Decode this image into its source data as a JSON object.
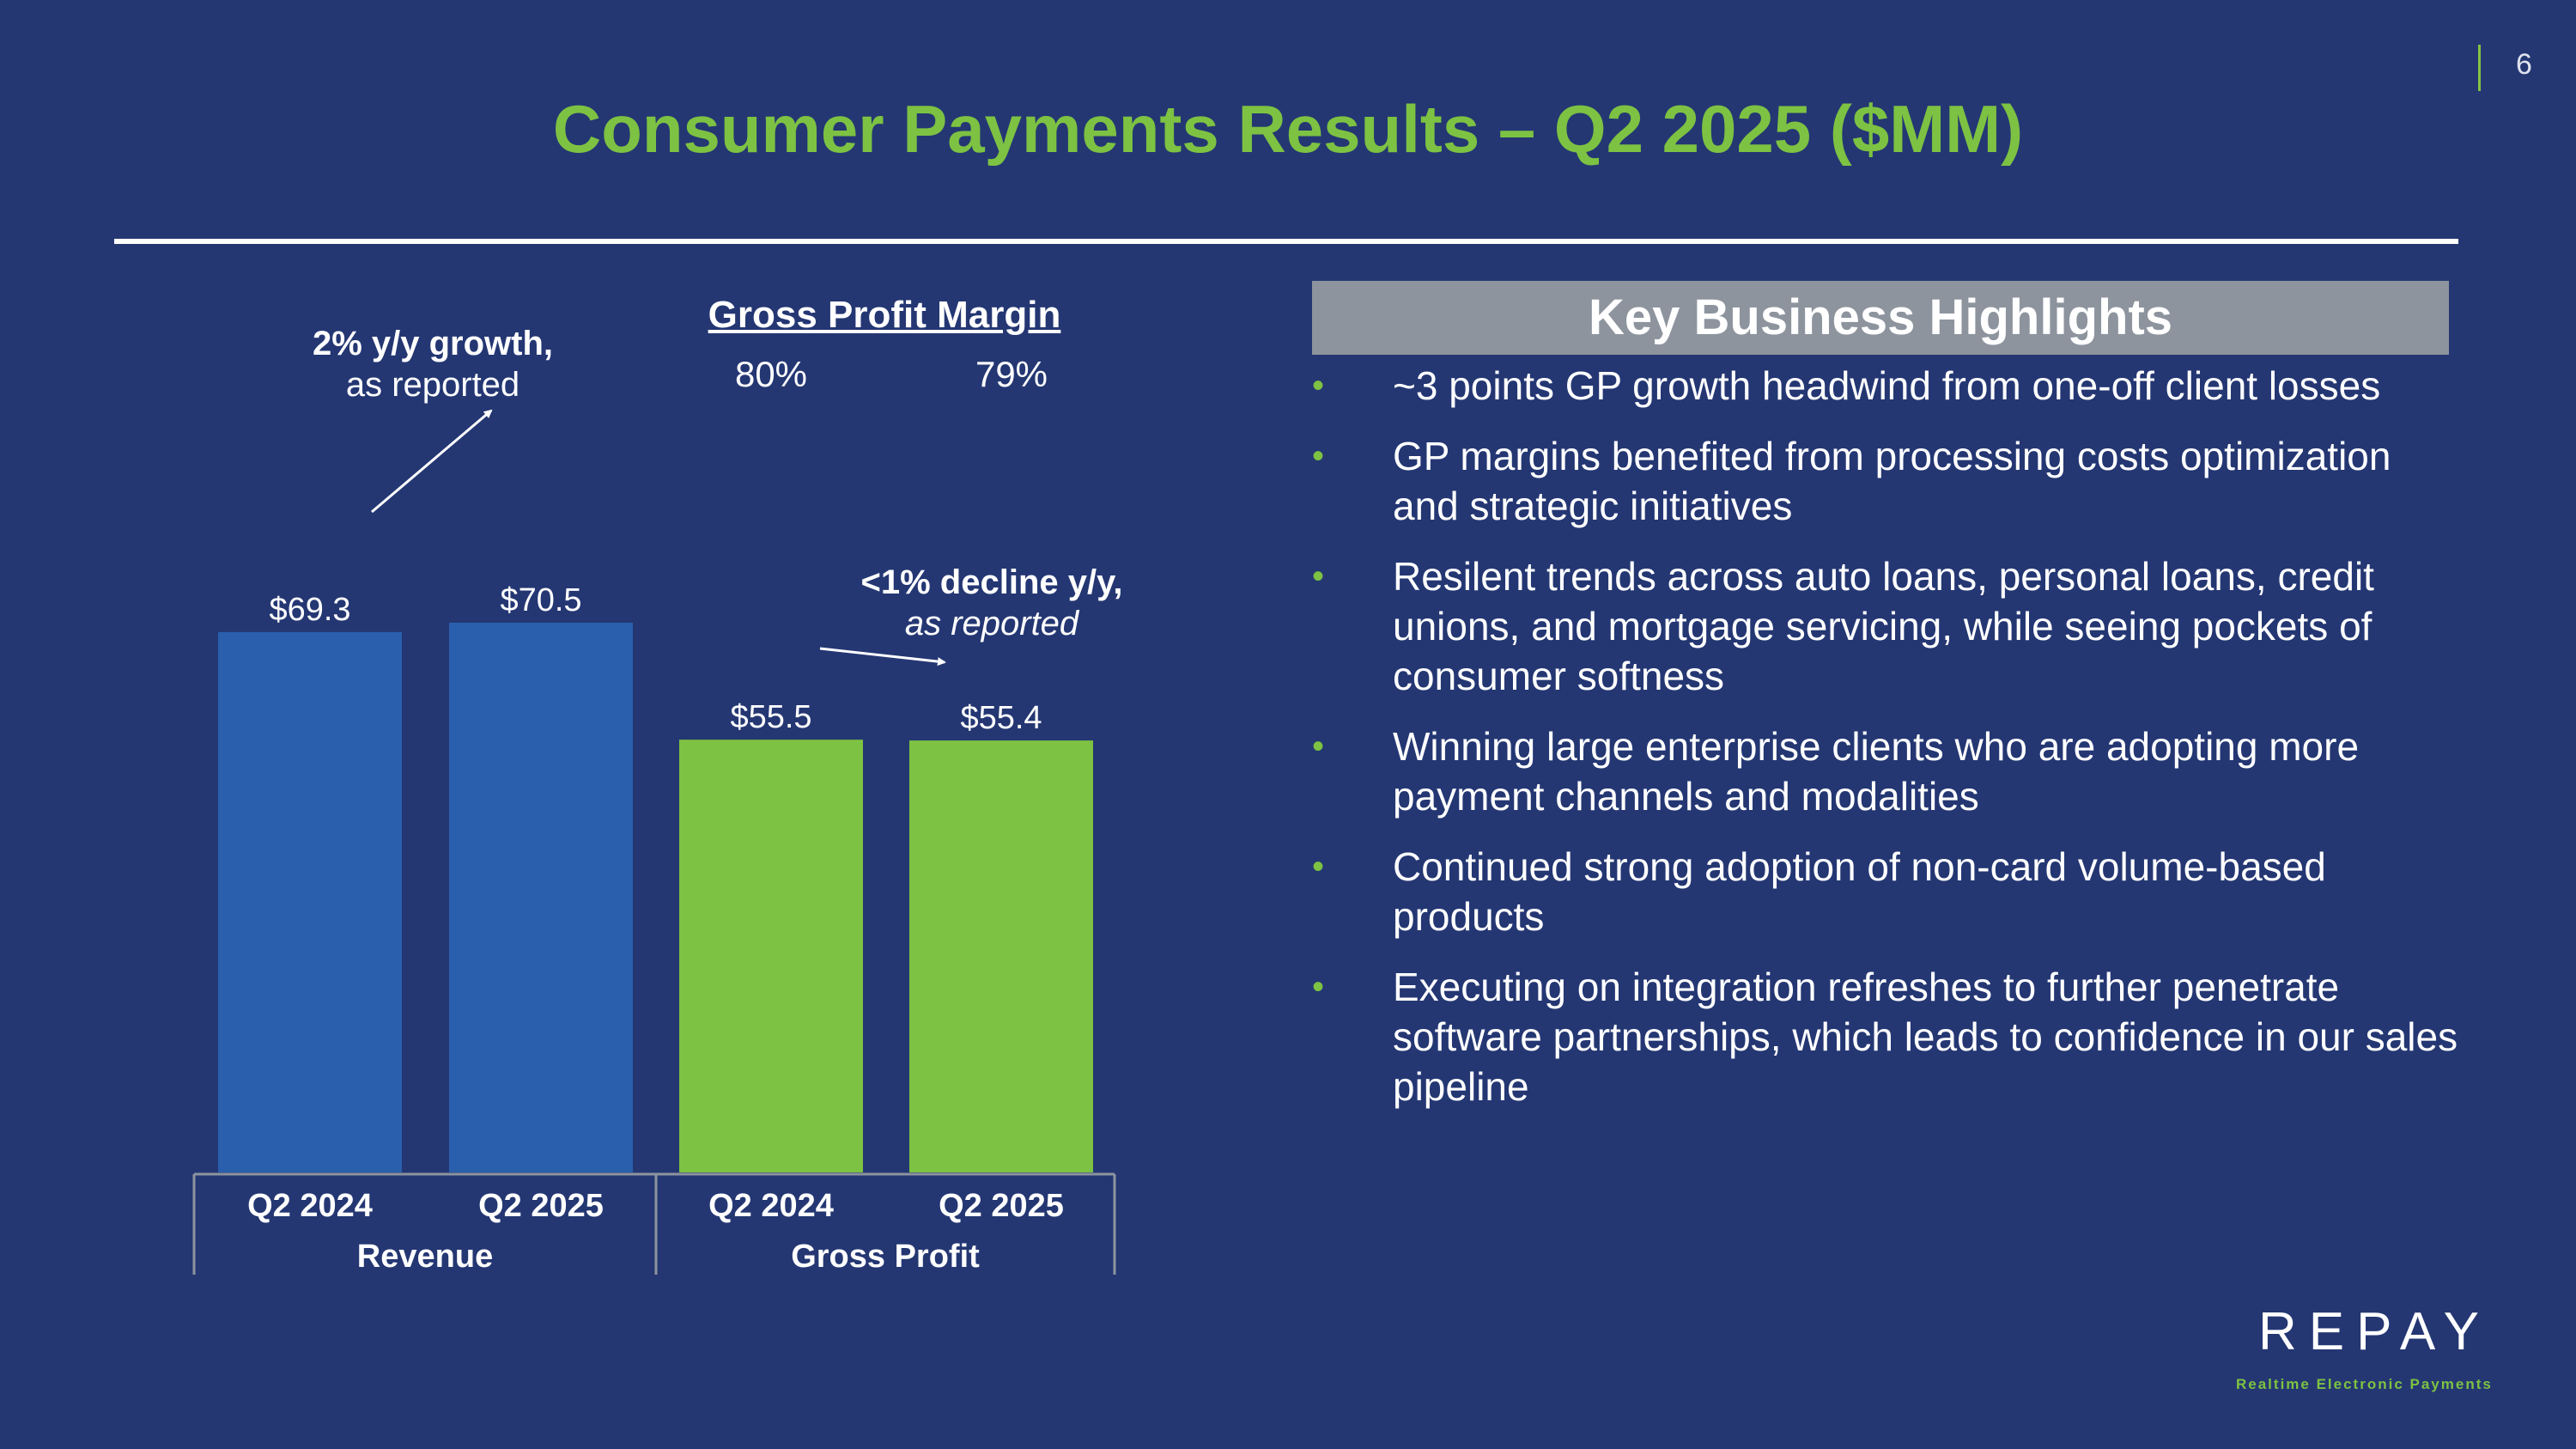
{
  "page_number": "6",
  "title": "Consumer Payments Results – Q2 2025 ($MM)",
  "annotations": {
    "revenue_growth_bold": "2% y/y growth,",
    "revenue_growth_sub": "as reported",
    "gp_decline_bold": "<1% decline y/y,",
    "gp_decline_sub": "as reported"
  },
  "gross_profit_margin": {
    "title": "Gross Profit Margin",
    "values": [
      "80%",
      "79%"
    ]
  },
  "chart_data": {
    "type": "bar",
    "groups": [
      {
        "name": "Revenue",
        "categories": [
          "Q2 2024",
          "Q2 2025"
        ],
        "values": [
          69.3,
          70.5
        ],
        "labels": [
          "$69.3",
          "$70.5"
        ],
        "color": "#2a5fad"
      },
      {
        "name": "Gross Profit",
        "categories": [
          "Q2 2024",
          "Q2 2025"
        ],
        "values": [
          55.5,
          55.4
        ],
        "labels": [
          "$55.5",
          "$55.4"
        ],
        "color": "#7dc242"
      }
    ],
    "ylim": [
      0,
      70.5
    ]
  },
  "highlights": {
    "title": "Key Business Highlights",
    "items": [
      "~3 points GP growth headwind from one-off client losses",
      "GP margins benefited from processing costs optimization and strategic initiatives",
      "Resilent trends across auto loans, personal loans, credit unions, and mortgage servicing, while seeing pockets of consumer softness",
      "Winning large enterprise clients who are adopting more payment channels and modalities",
      "Continued strong adoption of non-card volume-based products",
      "Executing on integration refreshes to further penetrate software partnerships, which leads to confidence in our sales pipeline"
    ]
  },
  "logo": {
    "name": "REPAY",
    "tagline": "Realtime Electronic Payments"
  }
}
